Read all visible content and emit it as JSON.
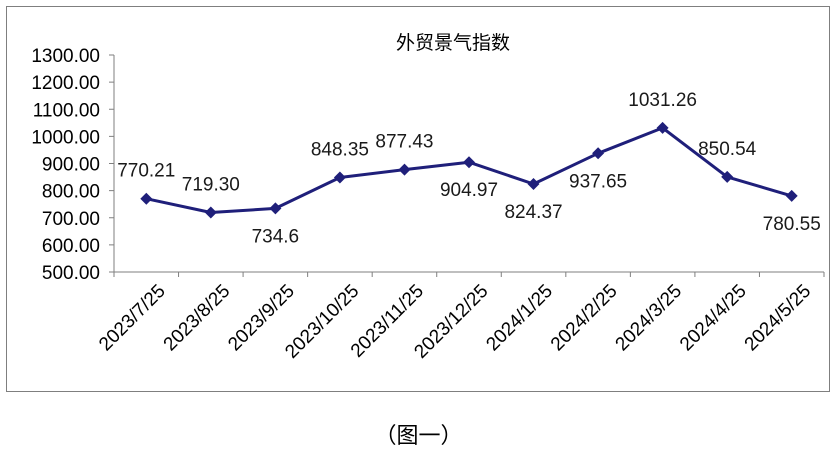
{
  "caption": "（图一）",
  "colors": {
    "line": "#1f1f7a",
    "marker": "#1f1f7a",
    "axis": "#7f7f7f",
    "frame": "#7f7f7f"
  },
  "chart_data": {
    "type": "line",
    "title": "外贸景气指数",
    "xlabel": "",
    "ylabel": "",
    "ylim": [
      500,
      1300
    ],
    "ytick_step": 100,
    "ytick_labels": [
      "500.00",
      "600.00",
      "700.00",
      "800.00",
      "900.00",
      "1000.00",
      "1100.00",
      "1200.00",
      "1300.00"
    ],
    "categories": [
      "2023/7/25",
      "2023/8/25",
      "2023/9/25",
      "2023/10/25",
      "2023/11/25",
      "2023/12/25",
      "2024/1/25",
      "2024/2/25",
      "2024/3/25",
      "2024/4/25",
      "2024/5/25"
    ],
    "series": [
      {
        "values": [
          770.21,
          719.3,
          734.6,
          848.35,
          877.43,
          904.97,
          824.37,
          937.65,
          1031.26,
          850.54,
          780.55
        ],
        "labels": [
          "770.21",
          "719.30",
          "734.6",
          "848.35",
          "877.43",
          "904.97",
          "824.37",
          "937.65",
          "1031.26",
          "850.54",
          "780.55"
        ]
      }
    ],
    "grid": false,
    "legend": "none",
    "marker": "diamond"
  }
}
